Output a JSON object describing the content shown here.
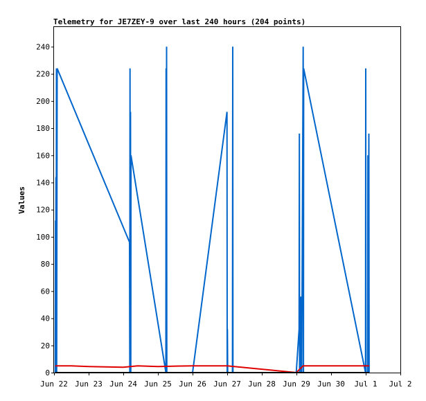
{
  "chart_data": {
    "type": "line",
    "title": "Telemetry for JE7ZEY-9 over last 240 hours (204 points)",
    "ylabel": "Values",
    "xlabel": "",
    "xlim": [
      "2025-06-22 00:00",
      "2025-07-02 00:00"
    ],
    "ylim": [
      0,
      255
    ],
    "x_ticks": [
      "Jun 22",
      "Jun 23",
      "Jun 24",
      "Jun 25",
      "Jun 26",
      "Jun 27",
      "Jun 28",
      "Jun 29",
      "Jun 30",
      "Jul 1",
      "Jul 2"
    ],
    "y_ticks": [
      0,
      20,
      40,
      60,
      80,
      100,
      120,
      140,
      160,
      180,
      200,
      220,
      240
    ],
    "grid": false,
    "series": [
      {
        "color": "#0066cc",
        "points": [
          [
            "2025-06-22 00:50",
            0
          ],
          [
            "2025-06-22 01:00",
            112
          ],
          [
            "2025-06-22 01:10",
            0
          ],
          [
            "2025-06-22 01:20",
            144
          ],
          [
            "2025-06-22 01:30",
            0
          ],
          [
            "2025-06-22 01:40",
            224
          ],
          [
            "2025-06-22 01:50",
            0
          ],
          [
            "2025-06-22 02:10",
            224
          ],
          [
            "2025-06-24 04:20",
            96
          ],
          [
            "2025-06-24 04:30",
            0
          ],
          [
            "2025-06-24 04:40",
            224
          ],
          [
            "2025-06-24 04:50",
            0
          ],
          [
            "2025-06-24 05:00",
            192
          ],
          [
            "2025-06-24 05:10",
            0
          ],
          [
            "2025-06-24 05:20",
            160
          ],
          [
            "2025-06-25 05:30",
            0
          ],
          [
            "2025-06-25 05:40",
            224
          ],
          [
            "2025-06-25 05:50",
            0
          ],
          [
            "2025-06-25 06:00",
            240
          ],
          [
            "2025-06-25 06:10",
            0
          ],
          [
            "2025-06-26 00:00",
            0
          ],
          [
            "2025-06-26 23:50",
            192
          ],
          [
            "2025-06-27 00:00",
            0
          ],
          [
            "2025-06-27 00:10",
            32
          ],
          [
            "2025-06-27 00:20",
            0
          ],
          [
            "2025-06-27 03:40",
            0
          ],
          [
            "2025-06-27 03:50",
            240
          ],
          [
            "2025-06-27 04:00",
            0
          ],
          [
            "2025-06-28 23:50",
            0
          ],
          [
            "2025-06-29 01:50",
            32
          ],
          [
            "2025-06-29 02:00",
            176
          ],
          [
            "2025-06-29 02:10",
            0
          ],
          [
            "2025-06-29 03:00",
            56
          ],
          [
            "2025-06-29 03:10",
            0
          ],
          [
            "2025-06-29 03:30",
            48
          ],
          [
            "2025-06-29 03:40",
            0
          ],
          [
            "2025-06-29 04:40",
            240
          ],
          [
            "2025-06-29 04:50",
            0
          ],
          [
            "2025-06-29 05:00",
            224
          ],
          [
            "2025-06-30 23:50",
            0
          ],
          [
            "2025-07-01 00:00",
            224
          ],
          [
            "2025-07-01 00:10",
            0
          ],
          [
            "2025-07-01 01:20",
            0
          ],
          [
            "2025-07-01 01:30",
            160
          ],
          [
            "2025-07-01 01:40",
            0
          ],
          [
            "2025-07-01 02:10",
            176
          ],
          [
            "2025-07-01 02:20",
            0
          ]
        ]
      },
      {
        "color": "#e00000",
        "points": [
          [
            "2025-06-22 00:50",
            5
          ],
          [
            "2025-06-22 12:00",
            5
          ],
          [
            "2025-06-23 00:00",
            4.5
          ],
          [
            "2025-06-24 00:00",
            4
          ],
          [
            "2025-06-24 10:00",
            5
          ],
          [
            "2025-06-25 00:00",
            4.5
          ],
          [
            "2025-06-26 00:00",
            5
          ],
          [
            "2025-06-27 00:00",
            5
          ],
          [
            "2025-06-28 23:50",
            0
          ],
          [
            "2025-06-29 04:40",
            5
          ],
          [
            "2025-06-30 00:00",
            5
          ],
          [
            "2025-07-01 02:20",
            5
          ]
        ]
      },
      {
        "color": "#000000",
        "points": [
          [
            "2025-06-22 00:50",
            0
          ],
          [
            "2025-07-01 02:20",
            0
          ]
        ]
      }
    ]
  }
}
